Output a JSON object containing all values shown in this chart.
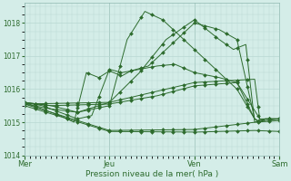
{
  "xlabel": "Pression niveau de la mer( hPa )",
  "bg_color": "#d4ede8",
  "grid_color": "#b8d8d2",
  "line_color": "#2d6b2d",
  "ylim": [
    1014.0,
    1018.6
  ],
  "yticks": [
    1014,
    1015,
    1016,
    1017,
    1018
  ],
  "xtick_labels": [
    "Mer",
    "Jeu",
    "Ven",
    "Sam"
  ],
  "xtick_positions": [
    0,
    48,
    96,
    144
  ]
}
